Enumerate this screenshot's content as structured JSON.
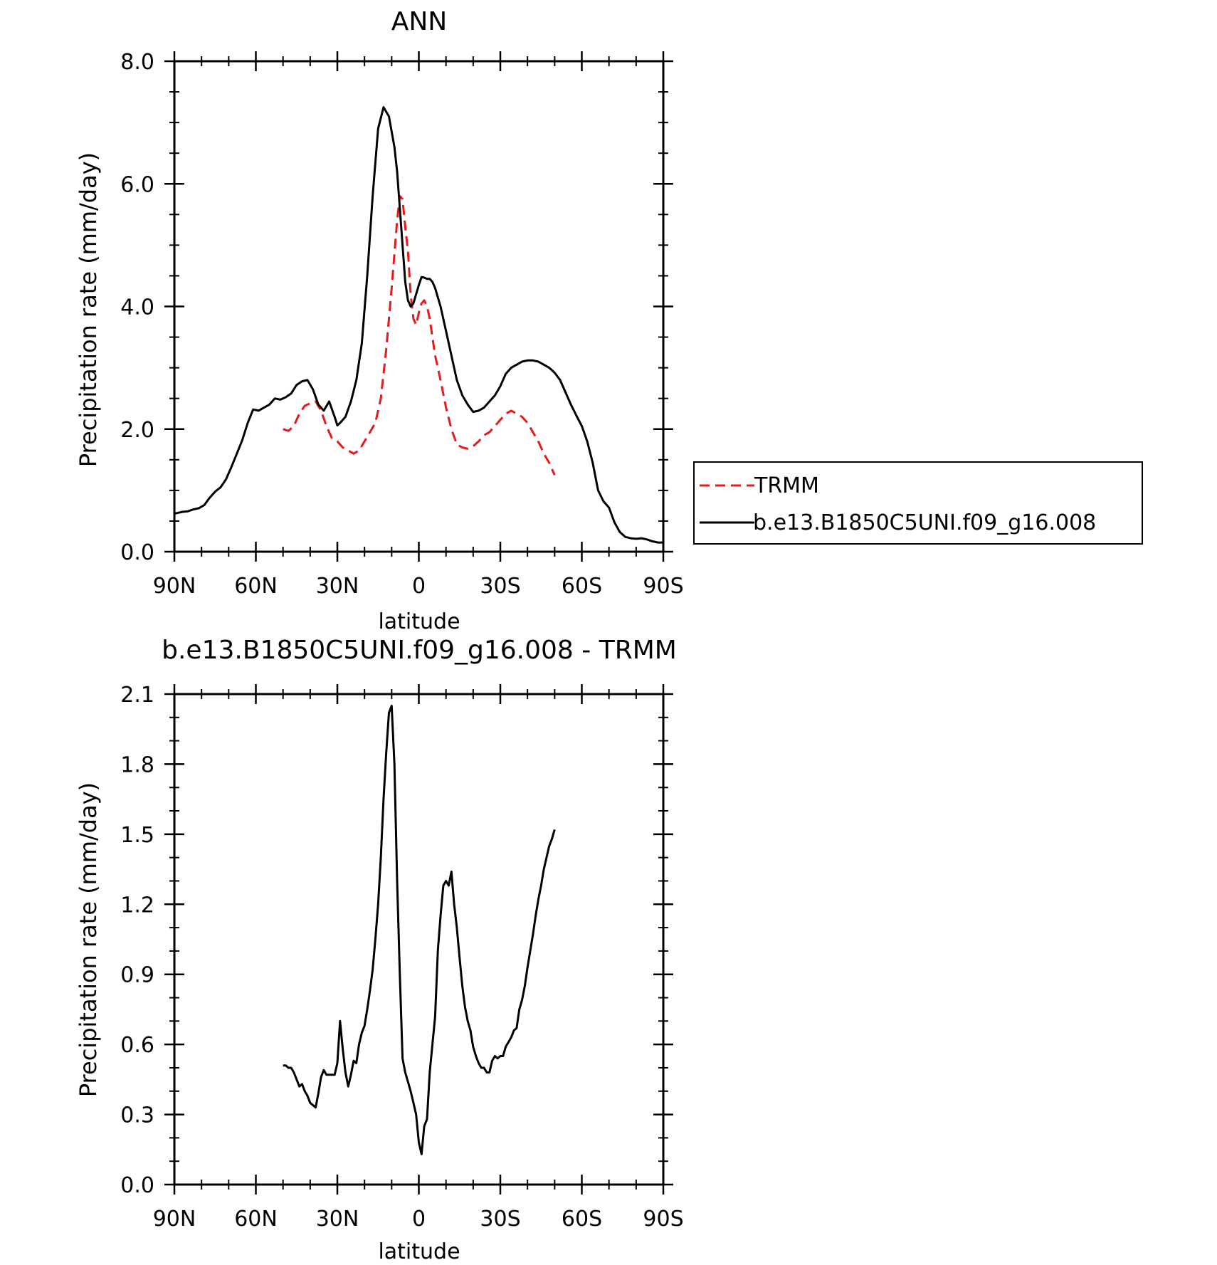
{
  "colors": {
    "model": "#000000",
    "obs": "#e41a1c",
    "axis": "#000000",
    "background": "#ffffff"
  },
  "chart_data": [
    {
      "type": "line",
      "title": "ANN",
      "xlabel": "latitude",
      "ylabel": "Precipitation rate (mm/day)",
      "xlim": [
        90,
        -90
      ],
      "ylim": [
        0,
        8
      ],
      "xticks": [
        {
          "value": 90,
          "label": "90N"
        },
        {
          "value": 60,
          "label": "60N"
        },
        {
          "value": 30,
          "label": "30N"
        },
        {
          "value": 0,
          "label": "0"
        },
        {
          "value": -30,
          "label": "30S"
        },
        {
          "value": -60,
          "label": "60S"
        },
        {
          "value": -90,
          "label": "90S"
        }
      ],
      "yticks": [
        {
          "value": 0,
          "label": "0.0"
        },
        {
          "value": 2,
          "label": "2.0"
        },
        {
          "value": 4,
          "label": "4.0"
        },
        {
          "value": 6,
          "label": "6.0"
        },
        {
          "value": 8,
          "label": "8.0"
        }
      ],
      "grid": false,
      "legend": "right",
      "series": [
        {
          "name": "TRMM",
          "style": "dashed",
          "color": "#e41a1c",
          "x": [
            50,
            48,
            46,
            44,
            42,
            40,
            38,
            36,
            34,
            32,
            30,
            28,
            26,
            24,
            22,
            20,
            18,
            16,
            14,
            12,
            10,
            8,
            7,
            6,
            5,
            4,
            3,
            2,
            1,
            0,
            -1,
            -2,
            -3,
            -4,
            -5,
            -6,
            -7,
            -8,
            -10,
            -12,
            -14,
            -16,
            -18,
            -20,
            -22,
            -24,
            -26,
            -28,
            -30,
            -32,
            -34,
            -36,
            -38,
            -40,
            -42,
            -44,
            -46,
            -48,
            -50
          ],
          "y": [
            2.0,
            1.97,
            2.05,
            2.25,
            2.38,
            2.42,
            2.45,
            2.3,
            2.05,
            1.85,
            1.8,
            1.7,
            1.65,
            1.6,
            1.65,
            1.8,
            1.95,
            2.1,
            2.5,
            3.3,
            4.3,
            5.4,
            5.8,
            5.75,
            5.3,
            4.9,
            4.2,
            3.8,
            3.7,
            3.9,
            4.05,
            4.1,
            4.0,
            3.8,
            3.5,
            3.2,
            3.0,
            2.8,
            2.35,
            2.0,
            1.75,
            1.7,
            1.68,
            1.72,
            1.8,
            1.9,
            1.95,
            2.05,
            2.15,
            2.25,
            2.3,
            2.25,
            2.2,
            2.1,
            1.95,
            1.8,
            1.6,
            1.45,
            1.25
          ]
        },
        {
          "name": "b.e13.B1850C5UNI.f09_g16.008",
          "style": "solid",
          "color": "#000000",
          "x": [
            90,
            87,
            85,
            83,
            81,
            79,
            77,
            75,
            73,
            71,
            69,
            67,
            65,
            63,
            61,
            59,
            57,
            55,
            53,
            51,
            49,
            47,
            45,
            43,
            41,
            39,
            37,
            35,
            33,
            31,
            30,
            29,
            27,
            25,
            23,
            21,
            19,
            17,
            15,
            13,
            11,
            9,
            8,
            7,
            6,
            5,
            4,
            3,
            2,
            1,
            0,
            -1,
            -2,
            -3,
            -4,
            -5,
            -6,
            -7,
            -8,
            -10,
            -12,
            -14,
            -16,
            -18,
            -20,
            -22,
            -24,
            -26,
            -28,
            -30,
            -32,
            -34,
            -36,
            -38,
            -40,
            -42,
            -44,
            -46,
            -48,
            -50,
            -52,
            -54,
            -56,
            -58,
            -60,
            -62,
            -64,
            -66,
            -68,
            -70,
            -72,
            -74,
            -76,
            -78,
            -80,
            -82,
            -84,
            -86,
            -88,
            -90
          ],
          "y": [
            0.62,
            0.65,
            0.66,
            0.69,
            0.71,
            0.76,
            0.88,
            0.98,
            1.05,
            1.18,
            1.38,
            1.6,
            1.82,
            2.1,
            2.32,
            2.3,
            2.35,
            2.4,
            2.5,
            2.48,
            2.52,
            2.58,
            2.72,
            2.78,
            2.8,
            2.65,
            2.4,
            2.3,
            2.45,
            2.2,
            2.06,
            2.1,
            2.2,
            2.45,
            2.8,
            3.4,
            4.5,
            5.8,
            6.9,
            7.25,
            7.1,
            6.6,
            6.2,
            5.6,
            5.0,
            4.4,
            4.1,
            4.0,
            4.05,
            4.2,
            4.35,
            4.48,
            4.47,
            4.45,
            4.45,
            4.4,
            4.3,
            4.15,
            4.0,
            3.6,
            3.2,
            2.8,
            2.55,
            2.4,
            2.28,
            2.3,
            2.35,
            2.45,
            2.55,
            2.7,
            2.9,
            3.0,
            3.05,
            3.1,
            3.12,
            3.12,
            3.1,
            3.05,
            3.0,
            2.92,
            2.8,
            2.6,
            2.4,
            2.22,
            2.05,
            1.8,
            1.45,
            1.0,
            0.82,
            0.72,
            0.48,
            0.32,
            0.24,
            0.22,
            0.21,
            0.22,
            0.2,
            0.17,
            0.15,
            0.15
          ]
        }
      ]
    },
    {
      "type": "line",
      "title": "b.e13.B1850C5UNI.f09_g16.008 - TRMM",
      "xlabel": "latitude",
      "ylabel": "Precipitation rate (mm/day)",
      "xlim": [
        90,
        -90
      ],
      "ylim": [
        0,
        2.1
      ],
      "xticks": [
        {
          "value": 90,
          "label": "90N"
        },
        {
          "value": 60,
          "label": "60N"
        },
        {
          "value": 30,
          "label": "30N"
        },
        {
          "value": 0,
          "label": "0"
        },
        {
          "value": -30,
          "label": "30S"
        },
        {
          "value": -60,
          "label": "60S"
        },
        {
          "value": -90,
          "label": "90S"
        }
      ],
      "yticks": [
        {
          "value": 0,
          "label": "0.0"
        },
        {
          "value": 0.3,
          "label": "0.3"
        },
        {
          "value": 0.6,
          "label": "0.6"
        },
        {
          "value": 0.9,
          "label": "0.9"
        },
        {
          "value": 1.2,
          "label": "1.2"
        },
        {
          "value": 1.5,
          "label": "1.5"
        },
        {
          "value": 1.8,
          "label": "1.8"
        },
        {
          "value": 2.1,
          "label": "2.1"
        }
      ],
      "grid": false,
      "legend": "none",
      "series": [
        {
          "style": "solid",
          "color": "#000000",
          "x": [
            50,
            49,
            48,
            47,
            46,
            45,
            44,
            43,
            42,
            41,
            40,
            39,
            38,
            37,
            36,
            35,
            34,
            33,
            32,
            31,
            30,
            29,
            28,
            27,
            26,
            25,
            24,
            23,
            22,
            21,
            20,
            19,
            18,
            17,
            16,
            15,
            14,
            13,
            12,
            11,
            10,
            9,
            8,
            7,
            6,
            5,
            4,
            3,
            2,
            1,
            0,
            -1,
            -2,
            -3,
            -4,
            -5,
            -6,
            -7,
            -8,
            -9,
            -10,
            -11,
            -12,
            -13,
            -14,
            -15,
            -16,
            -17,
            -18,
            -19,
            -20,
            -21,
            -22,
            -23,
            -24,
            -25,
            -26,
            -27,
            -28,
            -29,
            -30,
            -31,
            -32,
            -33,
            -34,
            -35,
            -36,
            -37,
            -38,
            -39,
            -40,
            -41,
            -42,
            -43,
            -44,
            -45,
            -46,
            -47,
            -48,
            -49,
            -50
          ],
          "y": [
            0.51,
            0.51,
            0.5,
            0.5,
            0.48,
            0.45,
            0.42,
            0.43,
            0.4,
            0.38,
            0.35,
            0.34,
            0.33,
            0.39,
            0.46,
            0.49,
            0.47,
            0.47,
            0.47,
            0.47,
            0.52,
            0.7,
            0.58,
            0.48,
            0.42,
            0.47,
            0.53,
            0.52,
            0.6,
            0.65,
            0.68,
            0.75,
            0.83,
            0.92,
            1.05,
            1.2,
            1.4,
            1.65,
            1.85,
            2.02,
            2.05,
            1.8,
            1.3,
            0.9,
            0.54,
            0.48,
            0.44,
            0.4,
            0.35,
            0.3,
            0.18,
            0.13,
            0.25,
            0.28,
            0.48,
            0.6,
            0.72,
            1.0,
            1.15,
            1.28,
            1.3,
            1.28,
            1.34,
            1.2,
            1.1,
            0.97,
            0.85,
            0.76,
            0.7,
            0.66,
            0.59,
            0.55,
            0.52,
            0.5,
            0.5,
            0.48,
            0.48,
            0.53,
            0.55,
            0.54,
            0.55,
            0.55,
            0.59,
            0.61,
            0.63,
            0.66,
            0.67,
            0.75,
            0.79,
            0.85,
            0.93,
            1.0,
            1.07,
            1.15,
            1.22,
            1.28,
            1.35,
            1.4,
            1.45,
            1.48,
            1.52
          ]
        }
      ]
    }
  ]
}
